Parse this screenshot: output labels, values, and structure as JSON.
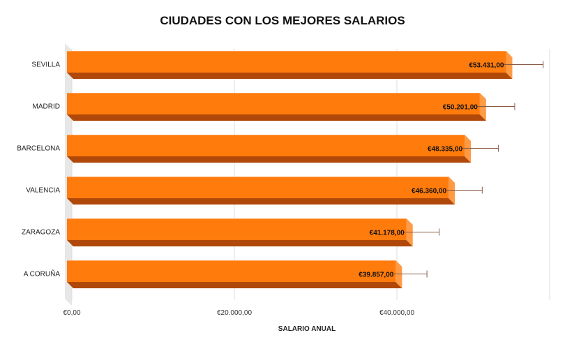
{
  "chart_data": {
    "type": "bar",
    "orientation": "horizontal",
    "title": "CIUDADES CON LOS MEJORES SALARIOS",
    "xlabel": "SALARIO ANUAL",
    "ylabel": "",
    "categories": [
      "SEVILLA",
      "MADRID",
      "BARCELONA",
      "VALENCIA",
      "ZARAGOZA",
      "A CORUÑA"
    ],
    "values": [
      53431,
      50201,
      48335,
      46360,
      41178,
      39857
    ],
    "value_labels": [
      "€53.431,00",
      "€50.201,00",
      "€48.335,00",
      "€46.360,00",
      "€41.178,00",
      "€39.857,00"
    ],
    "error_bars_upper": [
      58000,
      54500,
      52500,
      50500,
      45200,
      43700
    ],
    "xlim": [
      0,
      59000
    ],
    "x_ticks": [
      0,
      20000,
      40000
    ],
    "x_tick_labels": [
      "€0,00",
      "€20.000,00",
      "€40.000,00"
    ],
    "grid": true,
    "legend": "none",
    "colors": {
      "bar_front": "#ff7b0c",
      "bar_top": "#ff9a45",
      "bar_bottom": "#b0480a",
      "bar_edge": "#c05a10",
      "error_bar": "#8a5a44",
      "grid": "#dedede",
      "wall": "#e7e7e7"
    }
  }
}
